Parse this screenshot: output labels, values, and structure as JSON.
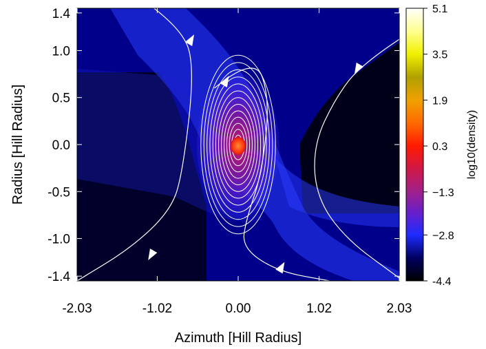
{
  "chart_data": {
    "type": "heatmap",
    "title": "",
    "xlabel": "Azimuth [Hill Radius]",
    "ylabel": "Radius [Hill Radius]",
    "xlim": [
      -2.03,
      2.03
    ],
    "ylim": [
      -1.45,
      1.45
    ],
    "x_ticks": [
      "-2.03",
      "-1.02",
      "0.00",
      "1.02",
      "2.03"
    ],
    "x_tick_values": [
      -2.03,
      -1.02,
      0.0,
      1.02,
      2.03
    ],
    "y_ticks": [
      "1.4",
      "1.0",
      "0.5",
      "0.0",
      "-0.5",
      "-1.0",
      "-1.4"
    ],
    "y_tick_values": [
      1.4,
      1.0,
      0.5,
      0.0,
      -0.5,
      -1.0,
      -1.4
    ],
    "colorbar": {
      "label": "log10(density)",
      "range": [
        -4.4,
        5.1
      ],
      "ticks": [
        "5.1",
        "3.5",
        "1.9",
        "0.3",
        "−1.3",
        "−2.8",
        "-4.4"
      ],
      "tick_values": [
        5.1,
        3.5,
        1.9,
        0.3,
        -1.3,
        -2.8,
        -4.4
      ],
      "colormap": [
        {
          "v": -4.4,
          "color": "#000000"
        },
        {
          "v": -3.6,
          "color": "#000060"
        },
        {
          "v": -2.8,
          "color": "#1e2cff"
        },
        {
          "v": -2.0,
          "color": "#6a1ec8"
        },
        {
          "v": -1.3,
          "color": "#a0208c"
        },
        {
          "v": -0.5,
          "color": "#d01848"
        },
        {
          "v": 0.3,
          "color": "#ff1a00"
        },
        {
          "v": 1.1,
          "color": "#ff6a00"
        },
        {
          "v": 1.9,
          "color": "#f0a000"
        },
        {
          "v": 2.7,
          "color": "#b0a000"
        },
        {
          "v": 3.5,
          "color": "#f0f000"
        },
        {
          "v": 4.3,
          "color": "#ffff90"
        },
        {
          "v": 5.1,
          "color": "#ffffff"
        }
      ]
    },
    "contours": {
      "center": [
        0.0,
        0.0
      ],
      "ring_count": 14,
      "outer_semi_axes": [
        0.47,
        0.95
      ]
    },
    "streamlines": [
      {
        "points": [
          [
            -1.14,
            1.5
          ],
          [
            -0.7,
            1.23
          ],
          [
            -0.55,
            0.8
          ],
          [
            -0.7,
            -0.3
          ],
          [
            -0.85,
            -0.7
          ],
          [
            -1.35,
            -1.1
          ],
          [
            -2.03,
            -1.45
          ]
        ],
        "arrows": [
          [
            -0.59,
            1.12,
            1
          ],
          [
            -1.1,
            -1.18,
            -1
          ]
        ]
      },
      {
        "points": [
          [
            2.03,
            1.12
          ],
          [
            1.55,
            0.85
          ],
          [
            1.23,
            0.5
          ],
          [
            0.95,
            0.0
          ],
          [
            0.98,
            -0.55
          ],
          [
            1.35,
            -1.0
          ],
          [
            2.03,
            -1.42
          ]
        ],
        "arrows": [
          [
            1.5,
            0.8,
            -1
          ]
        ]
      },
      {
        "points": [
          [
            -0.3,
            0.6
          ],
          [
            0.2,
            0.95
          ],
          [
            0.4,
            0.5
          ],
          [
            0.3,
            -0.3
          ],
          [
            0.1,
            -0.8
          ],
          [
            0.05,
            -1.1
          ],
          [
            0.5,
            -1.35
          ],
          [
            1.15,
            -1.45
          ]
        ],
        "arrows": [
          [
            -0.15,
            0.68,
            1
          ],
          [
            0.55,
            -1.3,
            1
          ]
        ]
      }
    ],
    "colors": {
      "background": "#00008a",
      "band": "#2a3cff",
      "dark_region": "#000020",
      "contour": "#ffffff",
      "core": "#ff3a1a"
    },
    "grid": false,
    "legend": "colorbar-right"
  }
}
